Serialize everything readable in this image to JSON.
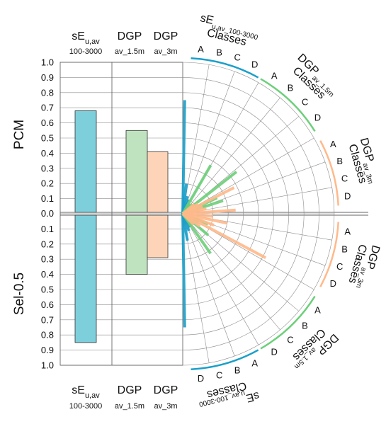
{
  "chart_data": {
    "type": "bar",
    "panels": {
      "top": "PCM",
      "bottom": "Sel-0.5"
    },
    "ylim": [
      0,
      1
    ],
    "tick_labels": [
      "0.0",
      "0.1",
      "0.2",
      "0.3",
      "0.4",
      "0.5",
      "0.6",
      "0.7",
      "0.8",
      "0.9",
      "1.0"
    ],
    "columns": [
      {
        "main": "sE",
        "sub": "u,av",
        "range": "100-3000"
      },
      {
        "main": "DGP",
        "range": "av_1.5m"
      },
      {
        "main": "DGP",
        "range": "av_3m"
      }
    ],
    "series": [
      {
        "key": "se",
        "color": "#7ecfdc",
        "top": 0.68,
        "bottom": 0.85
      },
      {
        "key": "dgp15",
        "color": "#bfe3bf",
        "top": 0.55,
        "bottom": 0.4
      },
      {
        "key": "dgp3",
        "color": "#fdd4b8",
        "top": 0.41,
        "bottom": 0.29
      }
    ],
    "polar": {
      "class_letters": [
        "A",
        "B",
        "C",
        "D"
      ],
      "group_labels": [
        {
          "key": "se_top",
          "pre": "sE",
          "sub": "u,av_100-3000",
          "word": "Classes"
        },
        {
          "key": "dgp15_top",
          "pre": "DGP",
          "sub": "av_1.5m",
          "word": "Classes"
        },
        {
          "key": "dgp3_top",
          "pre": "DGP",
          "sub": "av_3m",
          "word": "Classes"
        },
        {
          "key": "dgp3_bot",
          "pre": "DGP",
          "sub": "av_3m",
          "word": "Classes"
        },
        {
          "key": "dgp15_bot",
          "pre": "DGP",
          "sub": "av_1.5m",
          "word": "Classes"
        },
        {
          "key": "se_bot",
          "pre": "sE",
          "sub": "u,av_100-3000",
          "word": "Classes"
        }
      ],
      "arcs": [
        {
          "color": "#1a9fc9",
          "from": 87,
          "to": 61
        },
        {
          "color": "#6dcf7a",
          "from": 60,
          "to": 32
        },
        {
          "color": "#ffb98a",
          "from": 28,
          "to": 3
        },
        {
          "color": "#ffb98a",
          "from": -3,
          "to": -28
        },
        {
          "color": "#6dcf7a",
          "from": -32,
          "to": -60
        },
        {
          "color": "#1a9fc9",
          "from": -61,
          "to": -87
        }
      ],
      "spokes": [
        {
          "color": "#1a9fc9",
          "angle": 89,
          "r": 0.75
        },
        {
          "color": "#1a9fc9",
          "angle": 83,
          "r": 0.2
        },
        {
          "color": "#1a9fc9",
          "angle": 75,
          "r": 0.12
        },
        {
          "color": "#1a9fc9",
          "angle": 65,
          "r": 0.1
        },
        {
          "color": "#1a9fc9",
          "angle": 50,
          "r": 0.07
        },
        {
          "color": "#1a9fc9",
          "angle": 35,
          "r": 0.05
        },
        {
          "color": "#6dcf7a",
          "angle": 60,
          "r": 0.37
        },
        {
          "color": "#6dcf7a",
          "angle": 50,
          "r": 0.08
        },
        {
          "color": "#6dcf7a",
          "angle": 45,
          "r": 0.09
        },
        {
          "color": "#6dcf7a",
          "angle": 38,
          "r": 0.45
        },
        {
          "color": "#6dcf7a",
          "angle": 32,
          "r": 0.1
        },
        {
          "color": "#6dcf7a",
          "angle": 25,
          "r": 0.25
        },
        {
          "color": "#6dcf7a",
          "angle": 18,
          "r": 0.28
        },
        {
          "color": "#ffb98a",
          "angle": 40,
          "r": 0.1
        },
        {
          "color": "#ffb98a",
          "angle": 33,
          "r": 0.12
        },
        {
          "color": "#ffb98a",
          "angle": 27,
          "r": 0.38
        },
        {
          "color": "#ffb98a",
          "angle": 20,
          "r": 0.14
        },
        {
          "color": "#ffb98a",
          "angle": 12,
          "r": 0.16
        },
        {
          "color": "#ffb98a",
          "angle": 4,
          "r": 0.35
        },
        {
          "color": "#1a9fc9",
          "angle": -89,
          "r": 0.75
        },
        {
          "color": "#1a9fc9",
          "angle": -80,
          "r": 0.18
        },
        {
          "color": "#1a9fc9",
          "angle": -70,
          "r": 0.12
        },
        {
          "color": "#1a9fc9",
          "angle": -60,
          "r": 0.1
        },
        {
          "color": "#1a9fc9",
          "angle": -48,
          "r": 0.08
        },
        {
          "color": "#1a9fc9",
          "angle": -35,
          "r": 0.06
        },
        {
          "color": "#6dcf7a",
          "angle": -55,
          "r": 0.32
        },
        {
          "color": "#6dcf7a",
          "angle": -48,
          "r": 0.1
        },
        {
          "color": "#6dcf7a",
          "angle": -40,
          "r": 0.22
        },
        {
          "color": "#6dcf7a",
          "angle": -30,
          "r": 0.12
        },
        {
          "color": "#6dcf7a",
          "angle": -22,
          "r": 0.18
        },
        {
          "color": "#ffb98a",
          "angle": -45,
          "r": 0.1
        },
        {
          "color": "#ffb98a",
          "angle": -36,
          "r": 0.14
        },
        {
          "color": "#ffb98a",
          "angle": -28,
          "r": 0.62
        },
        {
          "color": "#ffb98a",
          "angle": -20,
          "r": 0.22
        },
        {
          "color": "#ffb98a",
          "angle": -12,
          "r": 0.3
        },
        {
          "color": "#ffb98a",
          "angle": -5,
          "r": 0.2
        }
      ]
    }
  }
}
